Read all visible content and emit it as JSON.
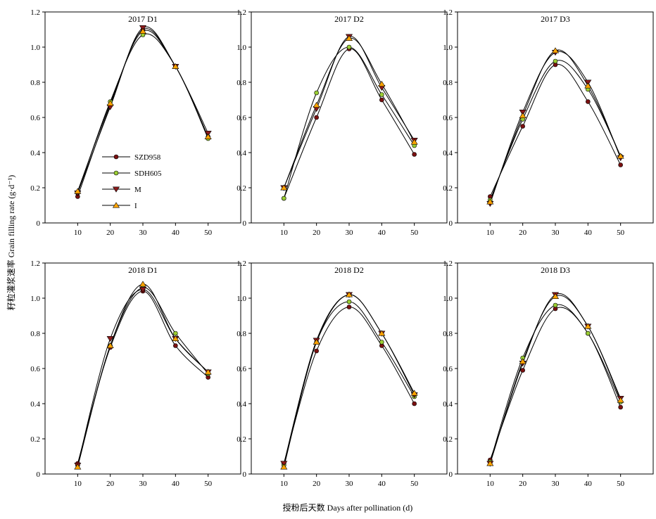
{
  "xlabel": "授粉后天数 Days after pollination (d)",
  "ylabel": "籽粒灌浆速率 Grain filling rate (g·d⁻¹)",
  "legend": {
    "placement": "inside-left of first panel",
    "entries": [
      {
        "name": "SZD958",
        "marker": "circle",
        "color": "#7a1010"
      },
      {
        "name": "SDH605",
        "marker": "circle",
        "color": "#9acd32"
      },
      {
        "name": "M",
        "marker": "triangle-down",
        "color": "#8b1a1a"
      },
      {
        "name": "I",
        "marker": "triangle-up",
        "color": "#ffa500"
      }
    ]
  },
  "chart_data": [
    {
      "type": "line",
      "title": "2017 D1",
      "x": [
        10,
        20,
        30,
        40,
        50
      ],
      "xlim": [
        0,
        60
      ],
      "ylim": [
        0,
        1.2
      ],
      "grid": false,
      "series": [
        {
          "name": "SZD958",
          "values": [
            0.15,
            0.67,
            1.1,
            0.89,
            0.49
          ]
        },
        {
          "name": "SDH605",
          "values": [
            0.17,
            0.69,
            1.07,
            0.89,
            0.48
          ]
        },
        {
          "name": "M",
          "values": [
            0.17,
            0.66,
            1.11,
            0.89,
            0.51
          ]
        },
        {
          "name": "I",
          "values": [
            0.18,
            0.68,
            1.09,
            0.89,
            0.49
          ]
        }
      ]
    },
    {
      "type": "line",
      "title": "2017 D2",
      "x": [
        10,
        20,
        30,
        40,
        50
      ],
      "xlim": [
        0,
        60
      ],
      "ylim": [
        0,
        1.2
      ],
      "grid": false,
      "series": [
        {
          "name": "SZD958",
          "values": [
            0.14,
            0.6,
            0.99,
            0.7,
            0.39
          ]
        },
        {
          "name": "SDH605",
          "values": [
            0.14,
            0.74,
            1.0,
            0.73,
            0.44
          ]
        },
        {
          "name": "M",
          "values": [
            0.2,
            0.65,
            1.06,
            0.77,
            0.47
          ]
        },
        {
          "name": "I",
          "values": [
            0.2,
            0.67,
            1.05,
            0.79,
            0.46
          ]
        }
      ]
    },
    {
      "type": "line",
      "title": "2017 D3",
      "x": [
        10,
        20,
        30,
        40,
        50
      ],
      "xlim": [
        0,
        60
      ],
      "ylim": [
        0,
        1.2
      ],
      "grid": false,
      "series": [
        {
          "name": "SZD958",
          "values": [
            0.15,
            0.55,
            0.9,
            0.69,
            0.33
          ]
        },
        {
          "name": "SDH605",
          "values": [
            0.13,
            0.59,
            0.92,
            0.76,
            0.38
          ]
        },
        {
          "name": "M",
          "values": [
            0.11,
            0.63,
            0.97,
            0.8,
            0.37
          ]
        },
        {
          "name": "I",
          "values": [
            0.12,
            0.61,
            0.98,
            0.78,
            0.38
          ]
        }
      ]
    },
    {
      "type": "line",
      "title": "2018 D1",
      "x": [
        10,
        20,
        30,
        40,
        50
      ],
      "xlim": [
        0,
        60
      ],
      "ylim": [
        0,
        1.2
      ],
      "grid": false,
      "series": [
        {
          "name": "SZD958",
          "values": [
            0.06,
            0.72,
            1.04,
            0.73,
            0.55
          ]
        },
        {
          "name": "SDH605",
          "values": [
            0.05,
            0.73,
            1.06,
            0.8,
            0.57
          ]
        },
        {
          "name": "M",
          "values": [
            0.05,
            0.77,
            1.05,
            0.77,
            0.58
          ]
        },
        {
          "name": "I",
          "values": [
            0.04,
            0.73,
            1.08,
            0.77,
            0.58
          ]
        }
      ]
    },
    {
      "type": "line",
      "title": "2018 D2",
      "x": [
        10,
        20,
        30,
        40,
        50
      ],
      "xlim": [
        0,
        60
      ],
      "ylim": [
        0,
        1.2
      ],
      "grid": false,
      "series": [
        {
          "name": "SZD958",
          "values": [
            0.06,
            0.7,
            0.95,
            0.73,
            0.4
          ]
        },
        {
          "name": "SDH605",
          "values": [
            0.05,
            0.75,
            0.98,
            0.75,
            0.44
          ]
        },
        {
          "name": "M",
          "values": [
            0.06,
            0.76,
            1.02,
            0.8,
            0.45
          ]
        },
        {
          "name": "I",
          "values": [
            0.04,
            0.75,
            1.02,
            0.8,
            0.46
          ]
        }
      ]
    },
    {
      "type": "line",
      "title": "2018 D3",
      "x": [
        10,
        20,
        30,
        40,
        50
      ],
      "xlim": [
        0,
        60
      ],
      "ylim": [
        0,
        1.2
      ],
      "grid": false,
      "series": [
        {
          "name": "SZD958",
          "values": [
            0.08,
            0.59,
            0.94,
            0.8,
            0.38
          ]
        },
        {
          "name": "SDH605",
          "values": [
            0.07,
            0.66,
            0.96,
            0.8,
            0.41
          ]
        },
        {
          "name": "M",
          "values": [
            0.06,
            0.63,
            1.02,
            0.84,
            0.43
          ]
        },
        {
          "name": "I",
          "values": [
            0.06,
            0.64,
            1.01,
            0.84,
            0.42
          ]
        }
      ]
    }
  ]
}
